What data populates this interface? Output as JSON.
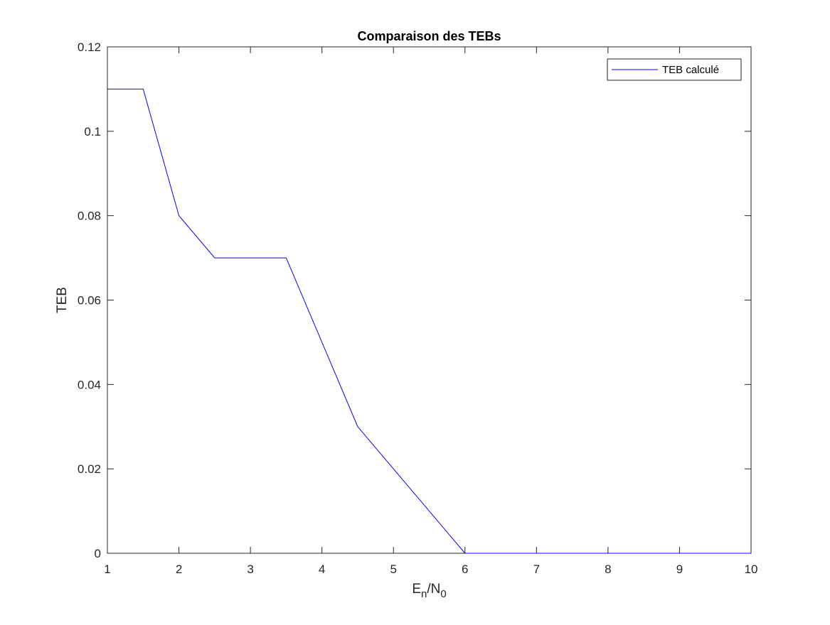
{
  "chart_data": {
    "type": "line",
    "title": "Comparaison des TEBs",
    "xlabel": {
      "base": "E",
      "sub1": "n",
      "mid": "/N",
      "sub2": "0"
    },
    "ylabel": "TEB",
    "xlim": [
      1,
      10
    ],
    "ylim": [
      0,
      0.12
    ],
    "x_ticks": [
      1,
      2,
      3,
      4,
      5,
      6,
      7,
      8,
      9,
      10
    ],
    "x_tick_labels": [
      "1",
      "2",
      "3",
      "4",
      "5",
      "6",
      "7",
      "8",
      "9",
      "10"
    ],
    "y_ticks": [
      0,
      0.02,
      0.04,
      0.06,
      0.08,
      0.1,
      0.12
    ],
    "y_tick_labels": [
      "0",
      "0.02",
      "0.04",
      "0.06",
      "0.08",
      "0.1",
      "0.12"
    ],
    "grid": false,
    "legend_position": "top-right",
    "series": [
      {
        "name": "TEB calculé",
        "color": "#0000ff",
        "x": [
          1,
          1.5,
          2,
          2.5,
          3,
          3.5,
          4,
          4.5,
          5,
          5.5,
          6,
          6.5,
          7,
          7.5,
          8,
          8.5,
          9,
          9.5,
          10
        ],
        "y": [
          0.11,
          0.11,
          0.08,
          0.07,
          0.07,
          0.07,
          0.05,
          0.03,
          0.02,
          0.01,
          0,
          0,
          0,
          0,
          0,
          0,
          0,
          0,
          0
        ]
      }
    ]
  }
}
